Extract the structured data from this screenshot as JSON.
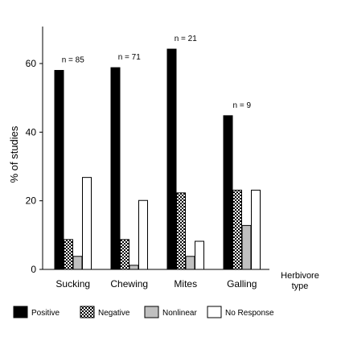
{
  "chart_data": {
    "type": "bar",
    "xlabel": "Herbivore\ntype",
    "ylabel": "% of studies",
    "ylim": [
      0,
      70
    ],
    "yticks": [
      0,
      20,
      40,
      60
    ],
    "grid": false,
    "legend_position": "bottom",
    "categories": [
      "Sucking",
      "Chewing",
      "Mites",
      "Galling"
    ],
    "annotations": [
      "n = 85",
      "n = 71",
      "n = 21",
      "n = 9"
    ],
    "series": [
      {
        "name": "Positive",
        "values": [
          58,
          58.8,
          64.2,
          44.8
        ],
        "pattern": "solid-black"
      },
      {
        "name": "Negative",
        "values": [
          8.7,
          8.7,
          22.3,
          23.1
        ],
        "pattern": "checker"
      },
      {
        "name": "Nonlinear",
        "values": [
          3.8,
          1.2,
          3.8,
          12.8
        ],
        "pattern": "solid-gray"
      },
      {
        "name": "No Response",
        "values": [
          26.8,
          20.1,
          8.2,
          23.1
        ],
        "pattern": "solid-white"
      }
    ]
  },
  "colors": {
    "positive": "#000000",
    "nonlinear": "#c0c0c0",
    "no_response": "#ffffff",
    "axis": "#000000"
  }
}
